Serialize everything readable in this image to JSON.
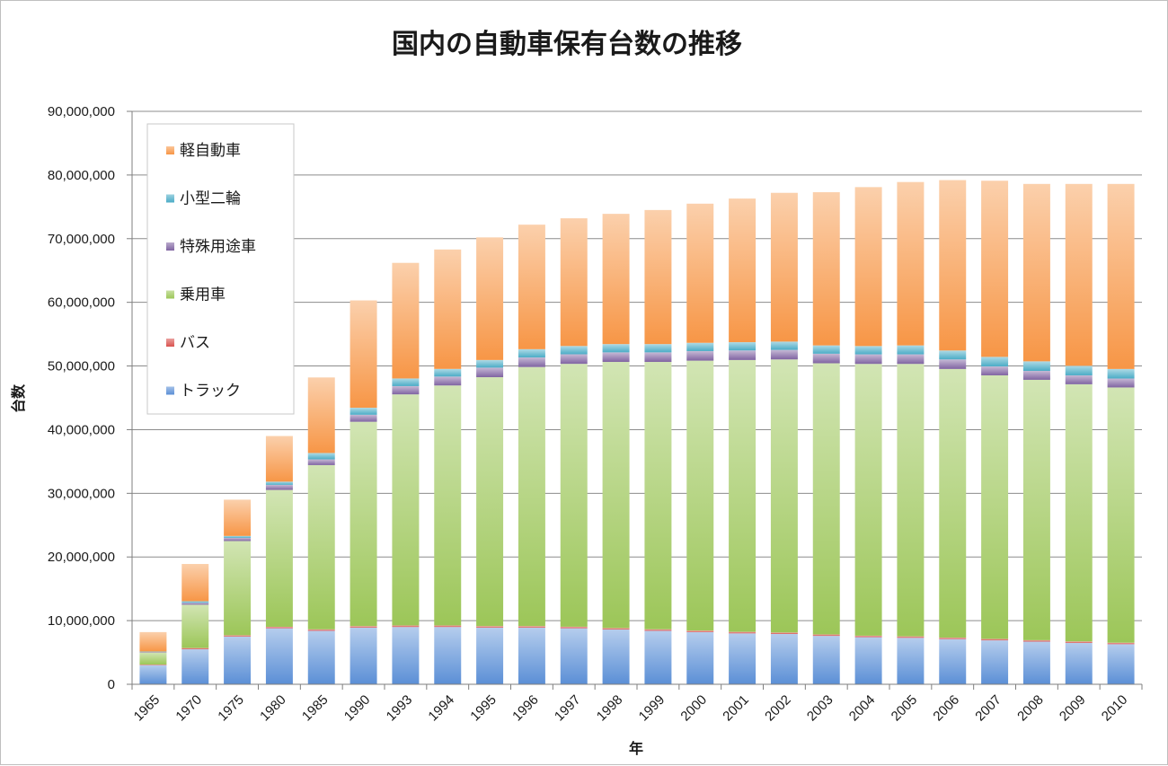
{
  "chart_data": {
    "type": "bar",
    "stacked": true,
    "title": "国内の自動車保有台数の推移",
    "xlabel": "年",
    "ylabel": "台数",
    "ylim": [
      0,
      90000000
    ],
    "yticks": [
      0,
      10000000,
      20000000,
      30000000,
      40000000,
      50000000,
      60000000,
      70000000,
      80000000,
      90000000
    ],
    "ytick_labels": [
      "0",
      "10,000,000",
      "20,000,000",
      "30,000,000",
      "40,000,000",
      "50,000,000",
      "60,000,000",
      "70,000,000",
      "80,000,000",
      "90,000,000"
    ],
    "grid": true,
    "legend_position": "top-left",
    "categories": [
      "1965",
      "1970",
      "1975",
      "1980",
      "1985",
      "1990",
      "1993",
      "1994",
      "1995",
      "1996",
      "1997",
      "1998",
      "1999",
      "2000",
      "2001",
      "2002",
      "2003",
      "2004",
      "2005",
      "2006",
      "2007",
      "2008",
      "2009",
      "2010"
    ],
    "series": [
      {
        "name": "トラック",
        "color": "#5b8fd6",
        "values": [
          3000000,
          5500000,
          7500000,
          8800000,
          8400000,
          8900000,
          9000000,
          9000000,
          8900000,
          8900000,
          8800000,
          8600000,
          8400000,
          8200000,
          8000000,
          7900000,
          7600000,
          7400000,
          7300000,
          7100000,
          6900000,
          6700000,
          6500000,
          6300000
        ]
      },
      {
        "name": "バス",
        "color": "#d9534f",
        "values": [
          100000,
          200000,
          200000,
          230000,
          230000,
          240000,
          240000,
          240000,
          240000,
          240000,
          240000,
          240000,
          240000,
          240000,
          240000,
          230000,
          230000,
          230000,
          230000,
          230000,
          230000,
          230000,
          230000,
          230000
        ]
      },
      {
        "name": "乗用車",
        "color": "#9cc658",
        "values": [
          1900000,
          6800000,
          14800000,
          21500000,
          25800000,
          32100000,
          36300000,
          37700000,
          39100000,
          40700000,
          41300000,
          41800000,
          42000000,
          42400000,
          42700000,
          42900000,
          42600000,
          42700000,
          42800000,
          42200000,
          41400000,
          40900000,
          40400000,
          40100000
        ]
      },
      {
        "name": "特殊用途車",
        "color": "#8064a2",
        "values": [
          100000,
          300000,
          500000,
          800000,
          900000,
          1100000,
          1300000,
          1400000,
          1500000,
          1500000,
          1500000,
          1500000,
          1500000,
          1500000,
          1500000,
          1500000,
          1500000,
          1500000,
          1500000,
          1500000,
          1400000,
          1400000,
          1400000,
          1400000
        ]
      },
      {
        "name": "小型二輪",
        "color": "#4bacc6",
        "values": [
          50000,
          250000,
          300000,
          500000,
          1000000,
          1100000,
          1200000,
          1200000,
          1200000,
          1300000,
          1300000,
          1300000,
          1300000,
          1300000,
          1300000,
          1300000,
          1300000,
          1300000,
          1400000,
          1400000,
          1500000,
          1500000,
          1500000,
          1500000
        ]
      },
      {
        "name": "軽自動車",
        "color": "#f79646",
        "values": [
          3050000,
          5850000,
          5700000,
          7170000,
          11870000,
          16860000,
          18160000,
          18760000,
          19260000,
          19560000,
          20060000,
          20460000,
          21060000,
          21860000,
          22560000,
          23370000,
          24070000,
          24970000,
          25670000,
          26770000,
          27670000,
          27870000,
          28570000,
          29070000
        ]
      }
    ]
  }
}
